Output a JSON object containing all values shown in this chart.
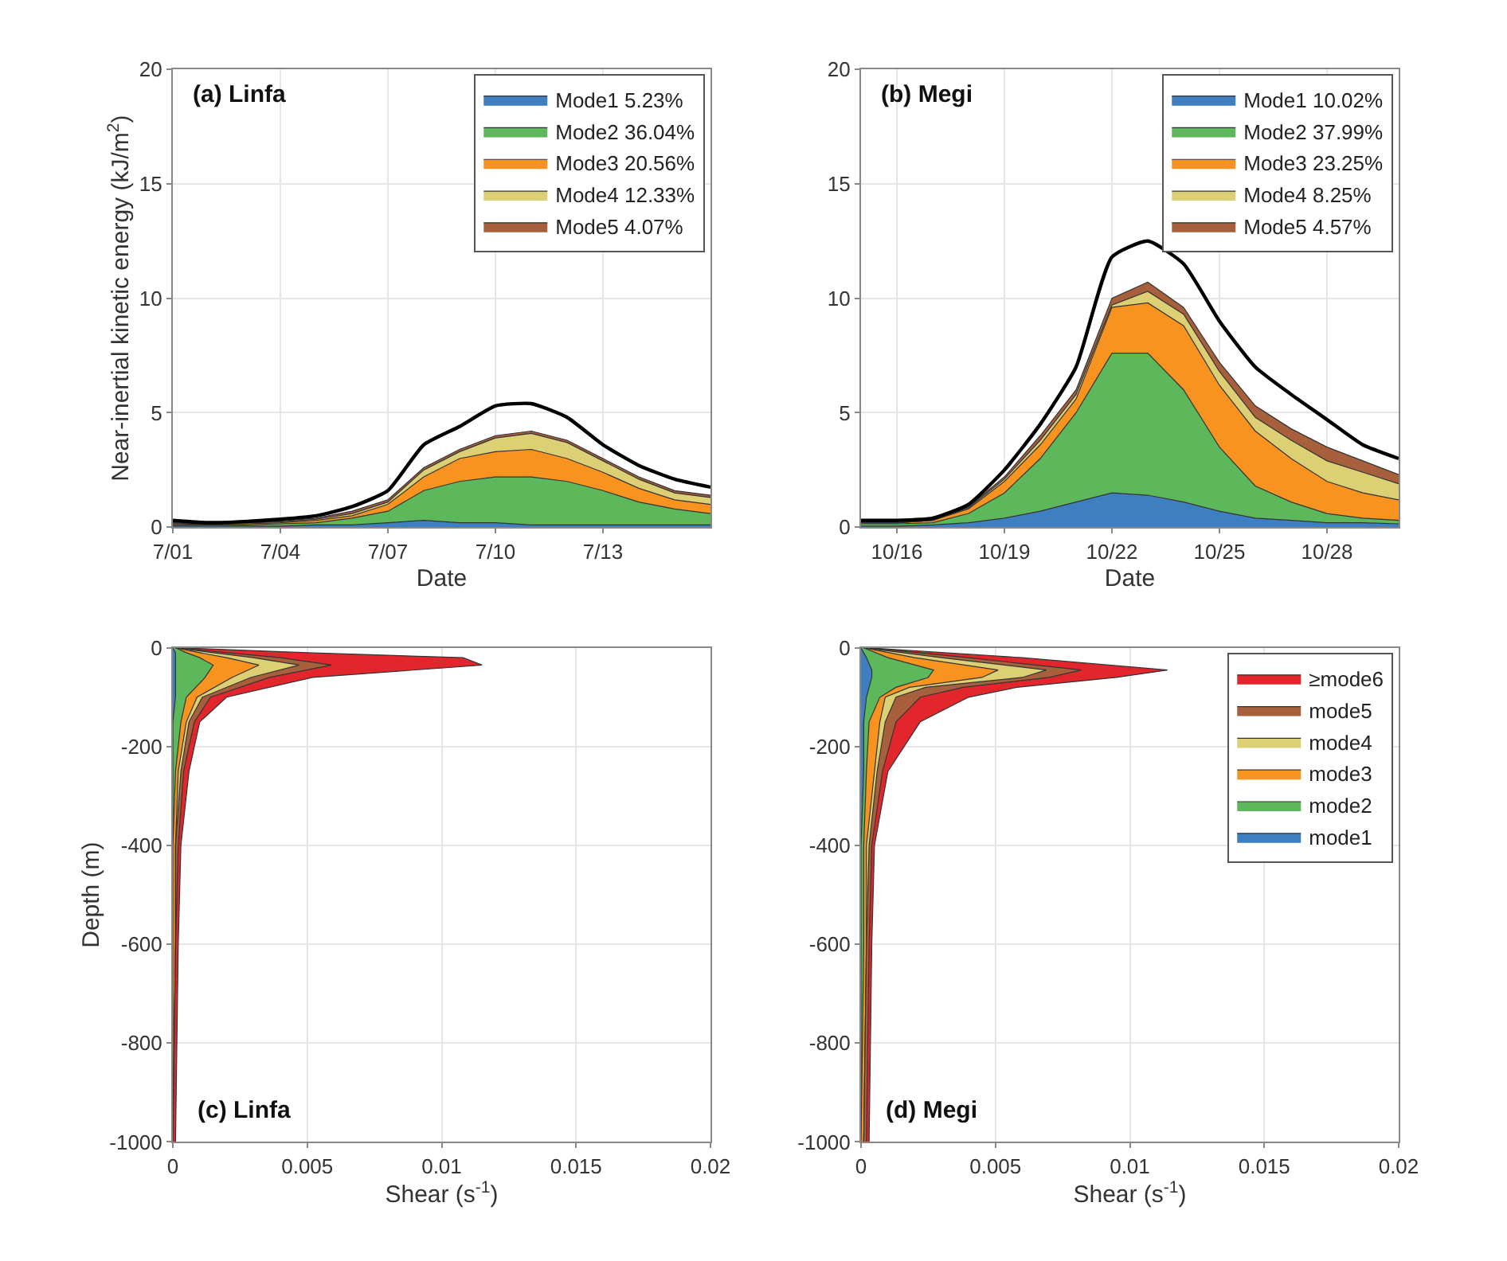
{
  "chart_data": [
    {
      "type": "area",
      "title": "(a) Linfa",
      "xlabel": "Date",
      "ylabel": "Near-inertial kinetic energy (kJ/m$^{2}$)",
      "stacked": true,
      "grid": true,
      "legend": "top right",
      "x": [
        "--07-01",
        "--07-02",
        "--07-03",
        "--07-04",
        "--07-05",
        "--07-06",
        "--07-07",
        "--07-08",
        "--07-09",
        "--07-10",
        "--07-11",
        "--07-12",
        "--07-13",
        "--07-14",
        "--07-15",
        "--07-16"
      ],
      "xlim": [
        "--07-01",
        "--07-16"
      ],
      "xticks": [
        {
          "value": "--07-01",
          "label": "7/01"
        },
        {
          "value": "--07-04",
          "label": "7/04"
        },
        {
          "value": "--07-07",
          "label": "7/07"
        },
        {
          "value": "--07-10",
          "label": "7/10"
        },
        {
          "value": "--07-13",
          "label": "7/13"
        }
      ],
      "ylim": [
        0,
        20
      ],
      "yticks": [
        0,
        5,
        10,
        15,
        20
      ],
      "series": [
        {
          "name": "Mode1 5.23%",
          "color": "#3d7fc1",
          "values": [
            0.05,
            0.05,
            0.05,
            0.05,
            0.1,
            0.1,
            0.2,
            0.3,
            0.2,
            0.2,
            0.1,
            0.1,
            0.1,
            0.1,
            0.1,
            0.1
          ]
        },
        {
          "name": "Mode2 36.04%",
          "color": "#5cb85a",
          "values": [
            0.05,
            0.05,
            0.05,
            0.1,
            0.1,
            0.3,
            0.5,
            1.3,
            1.8,
            2.0,
            2.1,
            1.9,
            1.5,
            1.0,
            0.7,
            0.5
          ]
        },
        {
          "name": "Mode3 20.56%",
          "color": "#f7931e",
          "values": [
            0.05,
            0.02,
            0.05,
            0.05,
            0.1,
            0.1,
            0.3,
            0.6,
            1.0,
            1.1,
            1.2,
            1.0,
            0.8,
            0.6,
            0.4,
            0.4
          ]
        },
        {
          "name": "Mode4 12.33%",
          "color": "#dccf74",
          "values": [
            0.03,
            0.02,
            0.03,
            0.04,
            0.05,
            0.1,
            0.1,
            0.3,
            0.3,
            0.6,
            0.7,
            0.7,
            0.5,
            0.4,
            0.3,
            0.3
          ]
        },
        {
          "name": "Mode5 4.07%",
          "color": "#a8603c",
          "values": [
            0.02,
            0.01,
            0.02,
            0.03,
            0.05,
            0.1,
            0.1,
            0.1,
            0.1,
            0.1,
            0.1,
            0.1,
            0.1,
            0.1,
            0.1,
            0.1
          ]
        },
        {
          "type": "line",
          "color": "#000000",
          "values": [
            0.3,
            0.2,
            0.25,
            0.35,
            0.5,
            0.9,
            1.6,
            3.6,
            4.4,
            5.3,
            5.4,
            4.8,
            3.6,
            2.7,
            2.1,
            1.75
          ]
        }
      ]
    },
    {
      "type": "area",
      "title": "(b) Megi",
      "xlabel": "Date",
      "stacked": true,
      "grid": true,
      "legend": "top right",
      "x": [
        "--10-15",
        "--10-16",
        "--10-17",
        "--10-18",
        "--10-19",
        "--10-20",
        "--10-21",
        "--10-22",
        "--10-23",
        "--10-24",
        "--10-25",
        "--10-26",
        "--10-27",
        "--10-28",
        "--10-29",
        "--10-30"
      ],
      "xlim": [
        "--10-15",
        "--10-30"
      ],
      "xticks": [
        {
          "value": "--10-16",
          "label": "10/16"
        },
        {
          "value": "--10-19",
          "label": "10/19"
        },
        {
          "value": "--10-22",
          "label": "10/22"
        },
        {
          "value": "--10-25",
          "label": "10/25"
        },
        {
          "value": "--10-28",
          "label": "10/28"
        }
      ],
      "ylim": [
        0,
        20
      ],
      "yticks": [
        0,
        5,
        10,
        15,
        20
      ],
      "series": [
        {
          "name": "Mode1 10.02%",
          "color": "#3d7fc1",
          "values": [
            0.05,
            0.05,
            0.1,
            0.2,
            0.4,
            0.7,
            1.1,
            1.5,
            1.4,
            1.1,
            0.7,
            0.4,
            0.3,
            0.2,
            0.2,
            0.15
          ]
        },
        {
          "name": "Mode2 37.99%",
          "color": "#5cb85a",
          "values": [
            0.1,
            0.1,
            0.1,
            0.4,
            1.1,
            2.3,
            3.9,
            6.1,
            6.2,
            4.9,
            2.8,
            1.4,
            0.8,
            0.4,
            0.2,
            0.15
          ]
        },
        {
          "name": "Mode3 23.25%",
          "color": "#f7931e",
          "values": [
            0.05,
            0.05,
            0.1,
            0.2,
            0.5,
            0.6,
            0.6,
            2.0,
            2.2,
            2.8,
            2.7,
            2.4,
            1.9,
            1.4,
            1.1,
            0.9
          ]
        },
        {
          "name": "Mode4 8.25%",
          "color": "#dccf74",
          "values": [
            0,
            0,
            0,
            0.05,
            0.1,
            0.2,
            0.2,
            0.1,
            0.5,
            0.5,
            0.6,
            0.6,
            0.8,
            0.9,
            0.9,
            0.7
          ]
        },
        {
          "name": "Mode5 4.57%",
          "color": "#a8603c",
          "values": [
            0,
            0,
            0,
            0.05,
            0.1,
            0.2,
            0.2,
            0.3,
            0.4,
            0.3,
            0.4,
            0.5,
            0.5,
            0.6,
            0.5,
            0.4
          ]
        },
        {
          "type": "line",
          "color": "#000000",
          "values": [
            0.3,
            0.3,
            0.4,
            1.0,
            2.5,
            4.5,
            7.0,
            11.8,
            12.5,
            11.5,
            9.0,
            7.0,
            5.8,
            4.7,
            3.6,
            3.0
          ]
        }
      ]
    },
    {
      "type": "area",
      "title": "(c) Linfa",
      "xlabel": "Shear (s$^{-1}$)",
      "ylabel": "Depth (m)",
      "stacked": true,
      "orientation": "horizontal",
      "grid": true,
      "x": [
        0,
        -10,
        -20,
        -35,
        -60,
        -100,
        -150,
        -250,
        -400,
        -600,
        -1000
      ],
      "xlim": [
        0,
        0.02
      ],
      "xticks": [
        0,
        0.005,
        0.01,
        0.015,
        0.02
      ],
      "ylim": [
        -1000,
        0
      ],
      "yticks": [
        -1000,
        -800,
        -600,
        -400,
        -200,
        0
      ],
      "series": [
        {
          "color": "#3d7fc1",
          "values": [
            0,
            0.0001,
            0.0001,
            0.0001,
            0.0001,
            0.0001,
            0,
            0,
            0,
            0,
            0
          ]
        },
        {
          "color": "#5cb85a",
          "values": [
            0.0001,
            0.0004,
            0.0009,
            0.0014,
            0.0011,
            0.0004,
            0.0003,
            0.0001,
            0,
            0,
            0
          ]
        },
        {
          "color": "#f7931e",
          "values": [
            0,
            0.0005,
            0.001,
            0.0017,
            0.001,
            0.0004,
            0.0002,
            0.0001,
            0.0001,
            0.0001,
            0
          ]
        },
        {
          "color": "#dccf74",
          "values": [
            0,
            0.0005,
            0.001,
            0.0015,
            0.0007,
            0.0002,
            0.0001,
            0.0001,
            0,
            0,
            0
          ]
        },
        {
          "color": "#a8603c",
          "values": [
            0,
            0.0005,
            0.001,
            0.0012,
            0.0007,
            0.0003,
            0.0002,
            0.0001,
            0.0001,
            0,
            0
          ]
        },
        {
          "color": "#e2262b",
          "values": [
            0.0001,
            0.003,
            0.0068,
            0.0056,
            0.0016,
            0.0006,
            0.0002,
            0.0002,
            0.0001,
            0.0001,
            0.0001
          ]
        }
      ]
    },
    {
      "type": "area",
      "title": "(d) Megi",
      "xlabel": "Shear (s$^{-1}$)",
      "stacked": true,
      "orientation": "horizontal",
      "grid": true,
      "legend": "top right",
      "x": [
        0,
        -20,
        -45,
        -60,
        -80,
        -100,
        -150,
        -250,
        -400,
        -600,
        -1000
      ],
      "xlim": [
        0,
        0.02
      ],
      "xticks": [
        0,
        0.005,
        0.01,
        0.015,
        0.02
      ],
      "ylim": [
        -1000,
        0
      ],
      "yticks": [
        -1000,
        -800,
        -600,
        -400,
        -200,
        0
      ],
      "series": [
        {
          "name": "mode1",
          "color": "#3d7fc1",
          "values": [
            0,
            0.0002,
            0.0004,
            0.0004,
            0.0003,
            0.0002,
            0.0001,
            0.0001,
            0,
            0,
            0
          ]
        },
        {
          "name": "mode2",
          "color": "#5cb85a",
          "values": [
            0.0001,
            0.0008,
            0.0023,
            0.0021,
            0.001,
            0.0005,
            0.0002,
            0.0001,
            0.0001,
            0.0001,
            0
          ]
        },
        {
          "name": "mode3",
          "color": "#f7931e",
          "values": [
            0,
            0.001,
            0.0024,
            0.002,
            0.0005,
            0.0002,
            0.0004,
            0.0003,
            0.0001,
            0.0001,
            0.0001
          ]
        },
        {
          "name": "mode4",
          "color": "#dccf74",
          "values": [
            0,
            0.001,
            0.0018,
            0.0015,
            0.0006,
            0.0004,
            0.0002,
            0.0001,
            0.0001,
            0,
            0
          ]
        },
        {
          "name": "mode5",
          "color": "#a8603c",
          "values": [
            0.0001,
            0.001,
            0.0013,
            0.001,
            0.0014,
            0.0009,
            0.0004,
            0.0002,
            0.0001,
            0.0001,
            0.0001
          ]
        },
        {
          "name": "≥mode6",
          "color": "#e2262b",
          "values": [
            0,
            0.002,
            0.0032,
            0.0025,
            0.002,
            0.0018,
            0.0009,
            0.0002,
            0.0001,
            0.0001,
            0.0001
          ]
        }
      ]
    }
  ]
}
